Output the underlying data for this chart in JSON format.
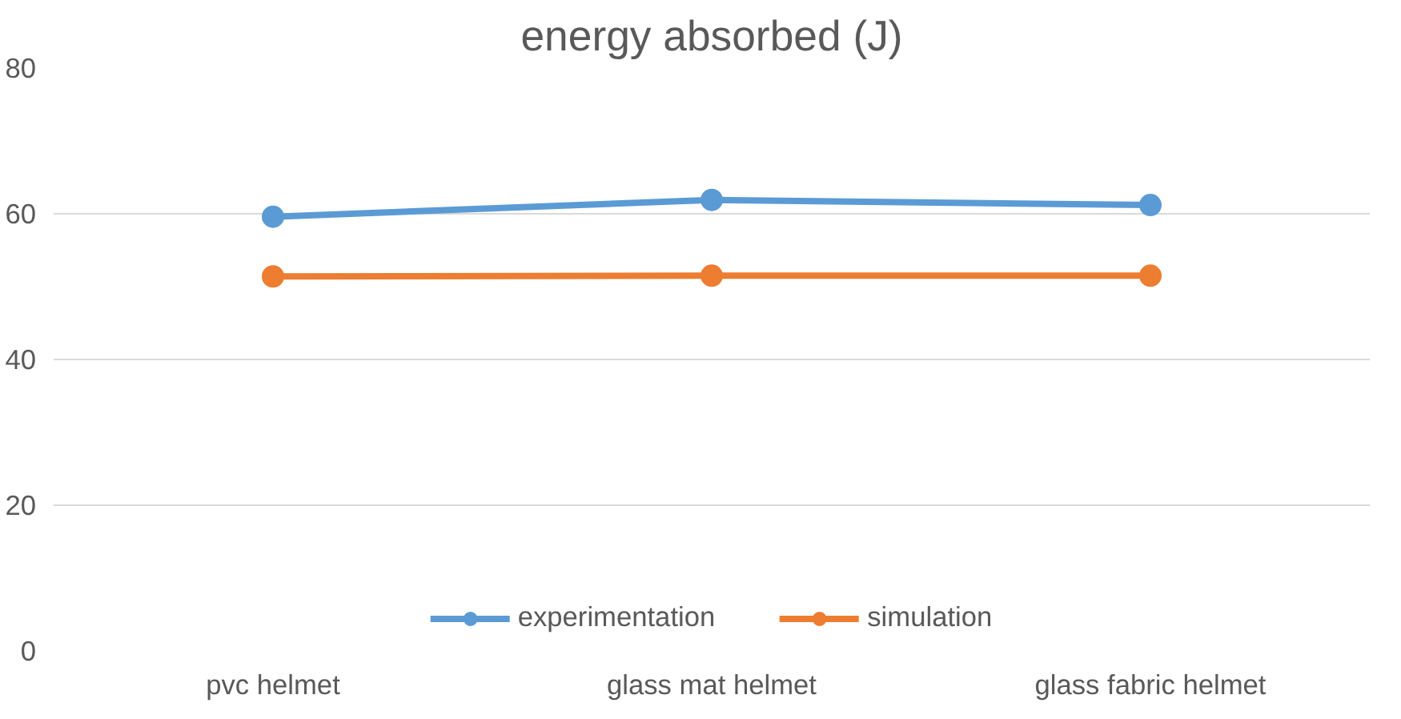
{
  "chart_data": {
    "type": "line",
    "title": "energy absorbed (J)",
    "categories": [
      "pvc helmet",
      "glass mat helmet",
      "glass fabric helmet"
    ],
    "series": [
      {
        "name": "experimentation",
        "color": "#5b9bd5",
        "values": [
          59.6,
          61.9,
          61.2
        ]
      },
      {
        "name": "simulation",
        "color": "#ed7d31",
        "values": [
          51.4,
          51.5,
          51.5
        ]
      }
    ],
    "ylim": [
      0,
      80
    ],
    "yticks": [
      0,
      20,
      40,
      60,
      80
    ],
    "grid": "y",
    "legend": "bottom",
    "marker": "circle",
    "line_style": "solid"
  }
}
